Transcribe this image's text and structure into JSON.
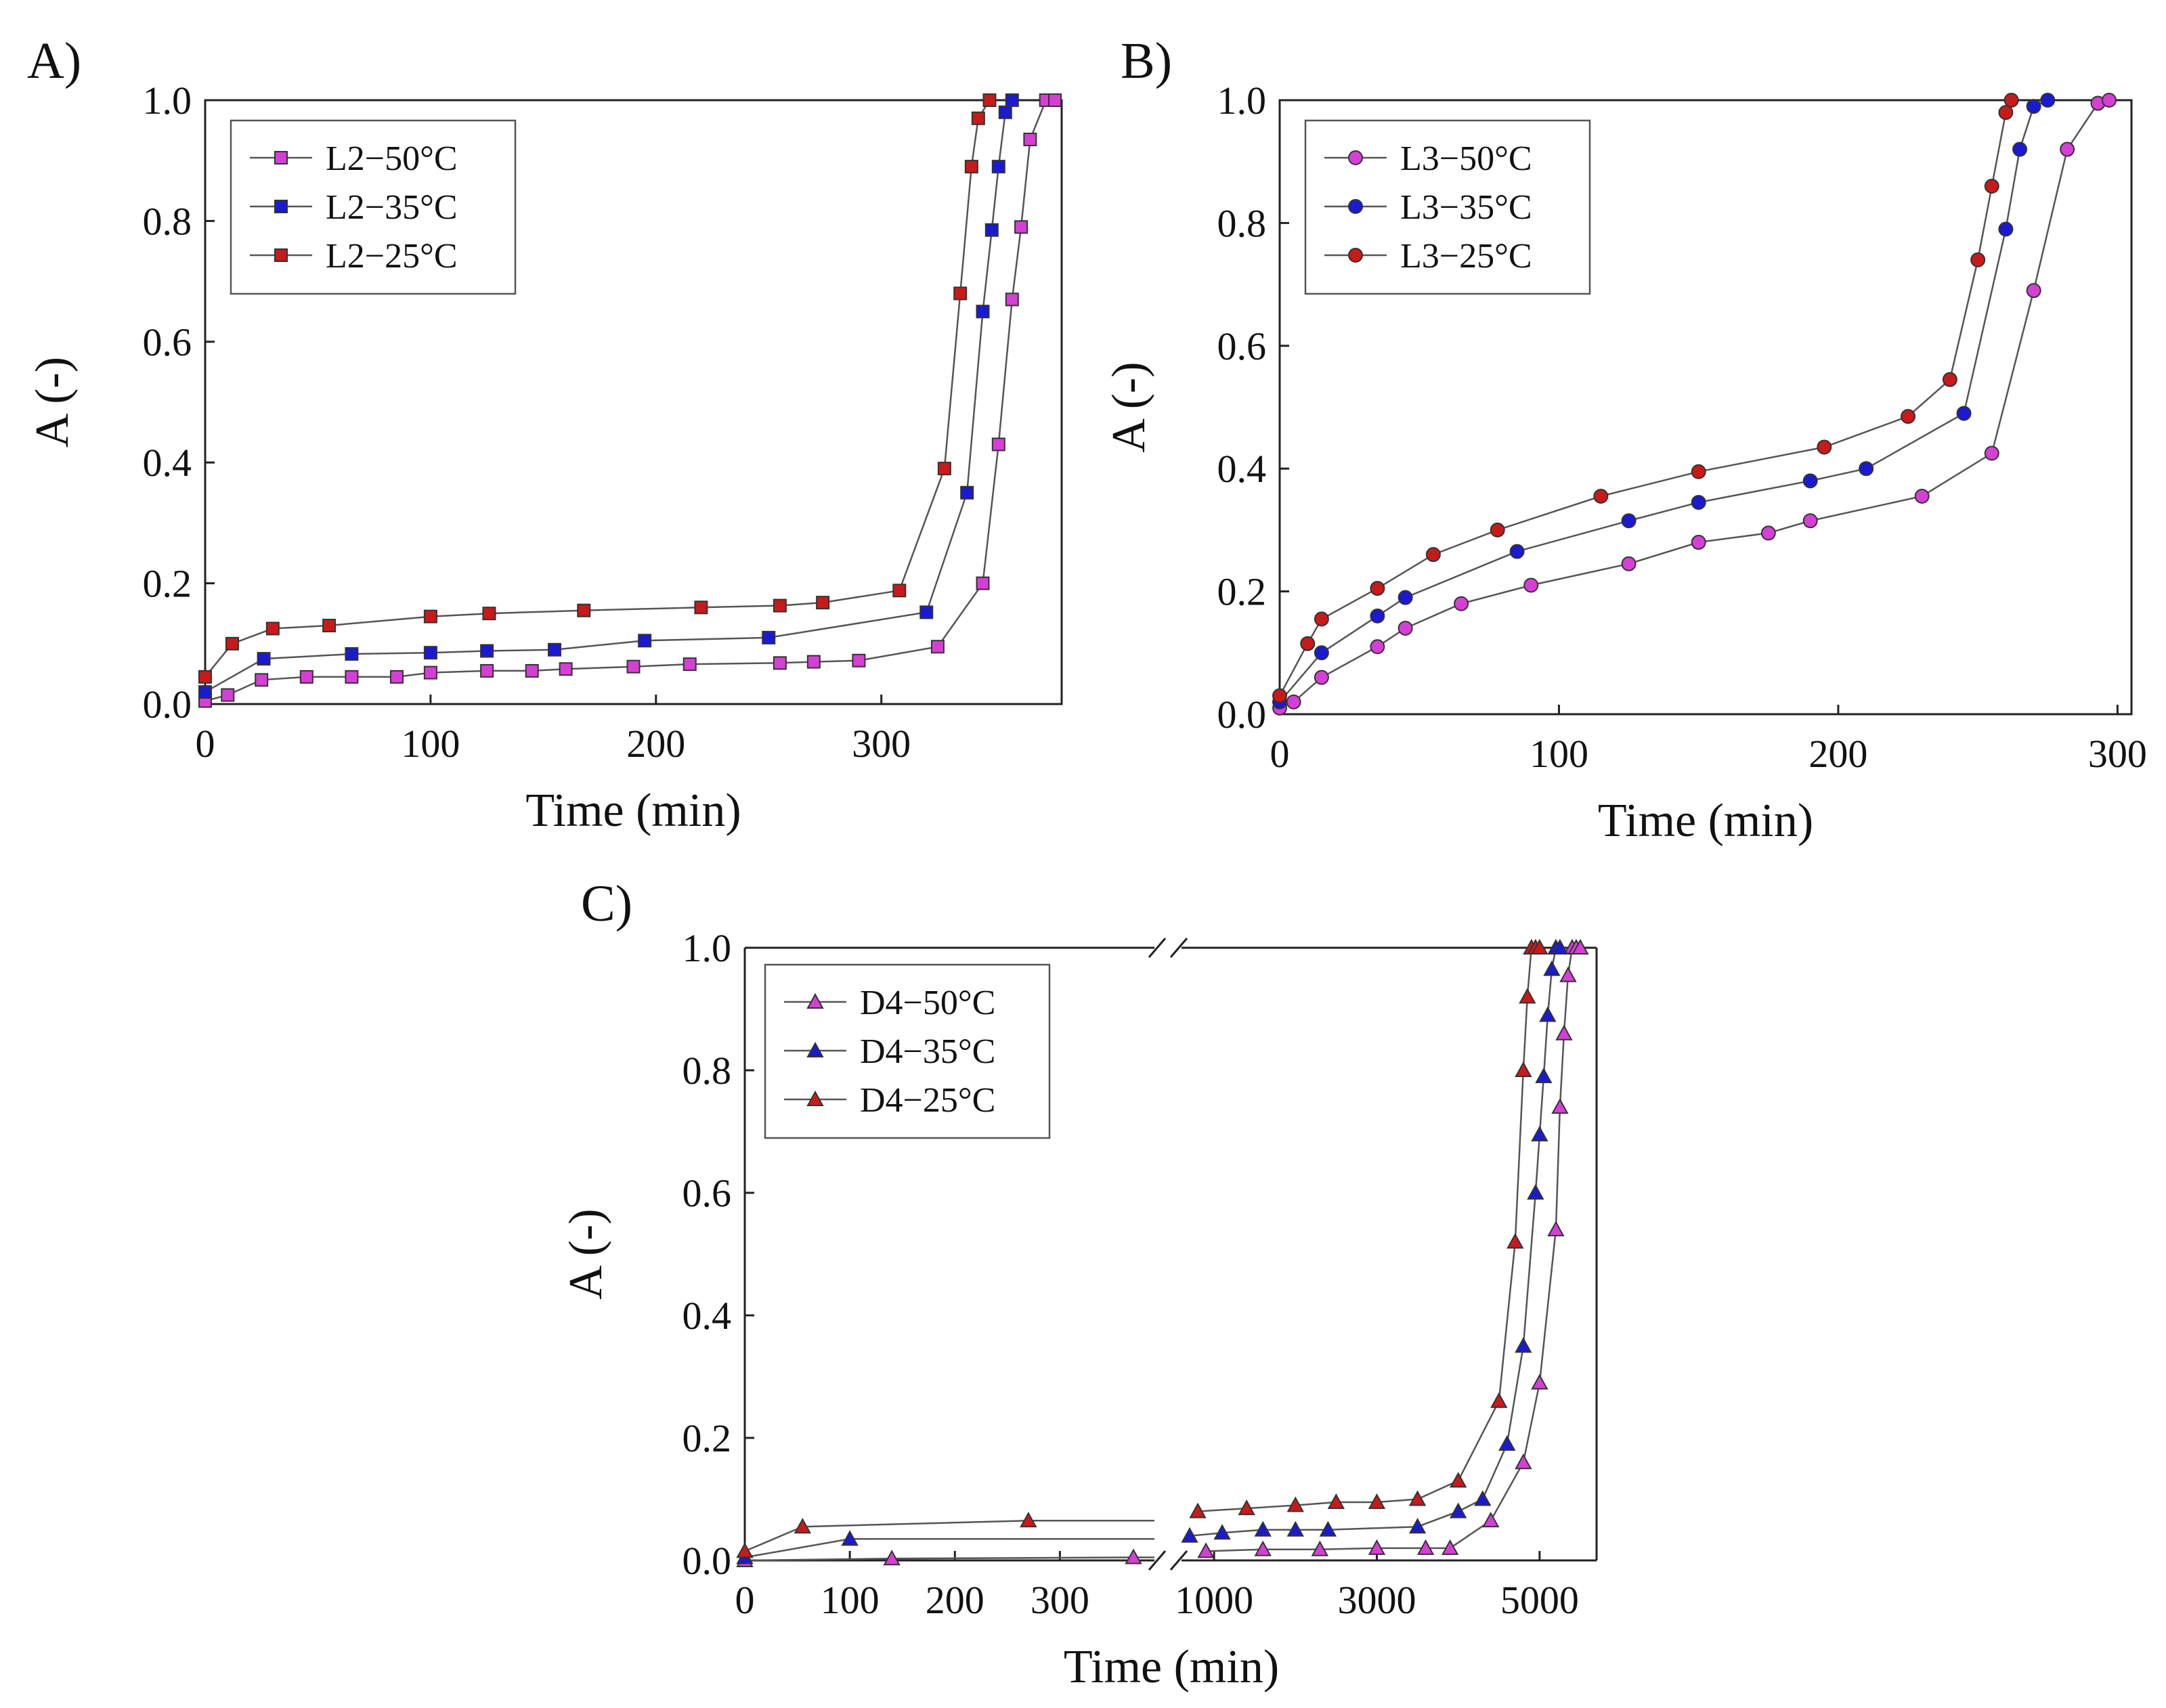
{
  "chart_data": [
    {
      "panel_label": "A)",
      "type": "line",
      "xlabel": "Time (min)",
      "ylabel": "A (-)",
      "xlim": [
        0,
        380
      ],
      "ylim": [
        0,
        1.0
      ],
      "xticks": [
        "0",
        "100",
        "200",
        "300"
      ],
      "yticks": [
        "0.0",
        "0.2",
        "0.4",
        "0.6",
        "0.8",
        "1.0"
      ],
      "marker": "square",
      "legend_position": "top-left",
      "series": [
        {
          "name": "L2−50°C",
          "color": "#d63fd6",
          "x": [
            0,
            10,
            25,
            45,
            65,
            85,
            100,
            125,
            145,
            160,
            190,
            215,
            255,
            270,
            290,
            325,
            345,
            352,
            358,
            362,
            366,
            373,
            377
          ],
          "y": [
            0.005,
            0.015,
            0.04,
            0.045,
            0.045,
            0.045,
            0.052,
            0.055,
            0.055,
            0.058,
            0.062,
            0.066,
            0.068,
            0.07,
            0.072,
            0.095,
            0.2,
            0.43,
            0.67,
            0.79,
            0.935,
            1.0,
            1.0
          ]
        },
        {
          "name": "L2−35°C",
          "color": "#1a1ad1",
          "x": [
            0,
            26,
            65,
            100,
            125,
            155,
            195,
            250,
            320,
            338,
            345,
            349,
            352,
            355,
            358
          ],
          "y": [
            0.02,
            0.075,
            0.083,
            0.085,
            0.088,
            0.09,
            0.105,
            0.11,
            0.152,
            0.35,
            0.65,
            0.785,
            0.89,
            0.98,
            1.0
          ]
        },
        {
          "name": "L2−25°C",
          "color": "#c91a1a",
          "x": [
            0,
            12,
            30,
            55,
            100,
            126,
            168,
            220,
            255,
            274,
            308,
            328,
            335,
            340,
            343,
            348
          ],
          "y": [
            0.045,
            0.1,
            0.125,
            0.13,
            0.145,
            0.15,
            0.155,
            0.16,
            0.163,
            0.168,
            0.188,
            0.39,
            0.68,
            0.89,
            0.97,
            1.0
          ]
        }
      ]
    },
    {
      "panel_label": "B)",
      "type": "line",
      "xlabel": "Time (min)",
      "ylabel": "A (-)",
      "xlim": [
        0,
        305
      ],
      "ylim": [
        0,
        1.0
      ],
      "xticks": [
        "0",
        "100",
        "200",
        "300"
      ],
      "yticks": [
        "0.0",
        "0.2",
        "0.4",
        "0.6",
        "0.8",
        "1.0"
      ],
      "marker": "circle",
      "legend_position": "top-left",
      "series": [
        {
          "name": "L3−50°C",
          "color": "#d63fd6",
          "x": [
            0,
            5,
            15,
            35,
            45,
            65,
            90,
            125,
            150,
            175,
            190,
            230,
            255,
            270,
            282,
            293,
            297
          ],
          "y": [
            0.01,
            0.02,
            0.06,
            0.11,
            0.14,
            0.18,
            0.21,
            0.245,
            0.28,
            0.295,
            0.315,
            0.355,
            0.425,
            0.69,
            0.92,
            0.995,
            1.0
          ]
        },
        {
          "name": "L3−35°C",
          "color": "#1a1ad1",
          "x": [
            0,
            15,
            35,
            45,
            85,
            125,
            150,
            190,
            210,
            245,
            260,
            265,
            270,
            275
          ],
          "y": [
            0.02,
            0.1,
            0.16,
            0.19,
            0.265,
            0.315,
            0.345,
            0.38,
            0.4,
            0.49,
            0.79,
            0.92,
            0.99,
            1.0
          ]
        },
        {
          "name": "L3−25°C",
          "color": "#c91a1a",
          "x": [
            0,
            10,
            15,
            35,
            55,
            78,
            115,
            150,
            195,
            225,
            240,
            250,
            255,
            260,
            262
          ],
          "y": [
            0.03,
            0.115,
            0.155,
            0.205,
            0.26,
            0.3,
            0.355,
            0.395,
            0.435,
            0.485,
            0.545,
            0.74,
            0.86,
            0.98,
            1.0
          ]
        }
      ]
    },
    {
      "panel_label": "C)",
      "type": "line",
      "xlabel": "Time (min)",
      "ylabel": "A (-)",
      "x_axis_break": true,
      "xlim_left": [
        0,
        390
      ],
      "xlim_right": [
        600,
        5700
      ],
      "ylim": [
        0,
        1.0
      ],
      "xticks": [
        "0",
        "100",
        "200",
        "300",
        "1000",
        "3000",
        "5000"
      ],
      "yticks": [
        "0.0",
        "0.2",
        "0.4",
        "0.6",
        "0.8",
        "1.0"
      ],
      "marker": "triangle",
      "legend_position": "top-left",
      "series": [
        {
          "name": "D4−50°C",
          "color": "#d63fd6",
          "x": [
            0,
            140,
            370,
            900,
            1600,
            2300,
            3000,
            3600,
            3900,
            4400,
            4800,
            5000,
            5200,
            5250,
            5300,
            5350,
            5400,
            5450,
            5500
          ],
          "y": [
            0.0,
            0.003,
            0.005,
            0.015,
            0.018,
            0.018,
            0.02,
            0.02,
            0.02,
            0.065,
            0.16,
            0.29,
            0.54,
            0.74,
            0.86,
            0.955,
            1.0,
            1.0,
            1.0
          ]
        },
        {
          "name": "D4−35°C",
          "color": "#1a1ad1",
          "x": [
            0,
            100,
            700,
            1100,
            1600,
            2000,
            2400,
            3500,
            4000,
            4300,
            4600,
            4800,
            4950,
            5000,
            5050,
            5100,
            5150,
            5200,
            5250
          ],
          "y": [
            0.005,
            0.035,
            0.04,
            0.045,
            0.05,
            0.05,
            0.05,
            0.055,
            0.08,
            0.1,
            0.19,
            0.35,
            0.6,
            0.695,
            0.79,
            0.89,
            0.965,
            1.0,
            1.0
          ]
        },
        {
          "name": "D4−25°C",
          "color": "#c91a1a",
          "x": [
            0,
            55,
            270,
            800,
            1400,
            2000,
            2500,
            3000,
            3500,
            4000,
            4500,
            4700,
            4800,
            4850,
            4900,
            4950,
            5000
          ],
          "y": [
            0.015,
            0.055,
            0.065,
            0.08,
            0.085,
            0.09,
            0.095,
            0.095,
            0.1,
            0.13,
            0.26,
            0.52,
            0.8,
            0.92,
            1.0,
            1.0,
            1.0
          ]
        }
      ]
    }
  ]
}
